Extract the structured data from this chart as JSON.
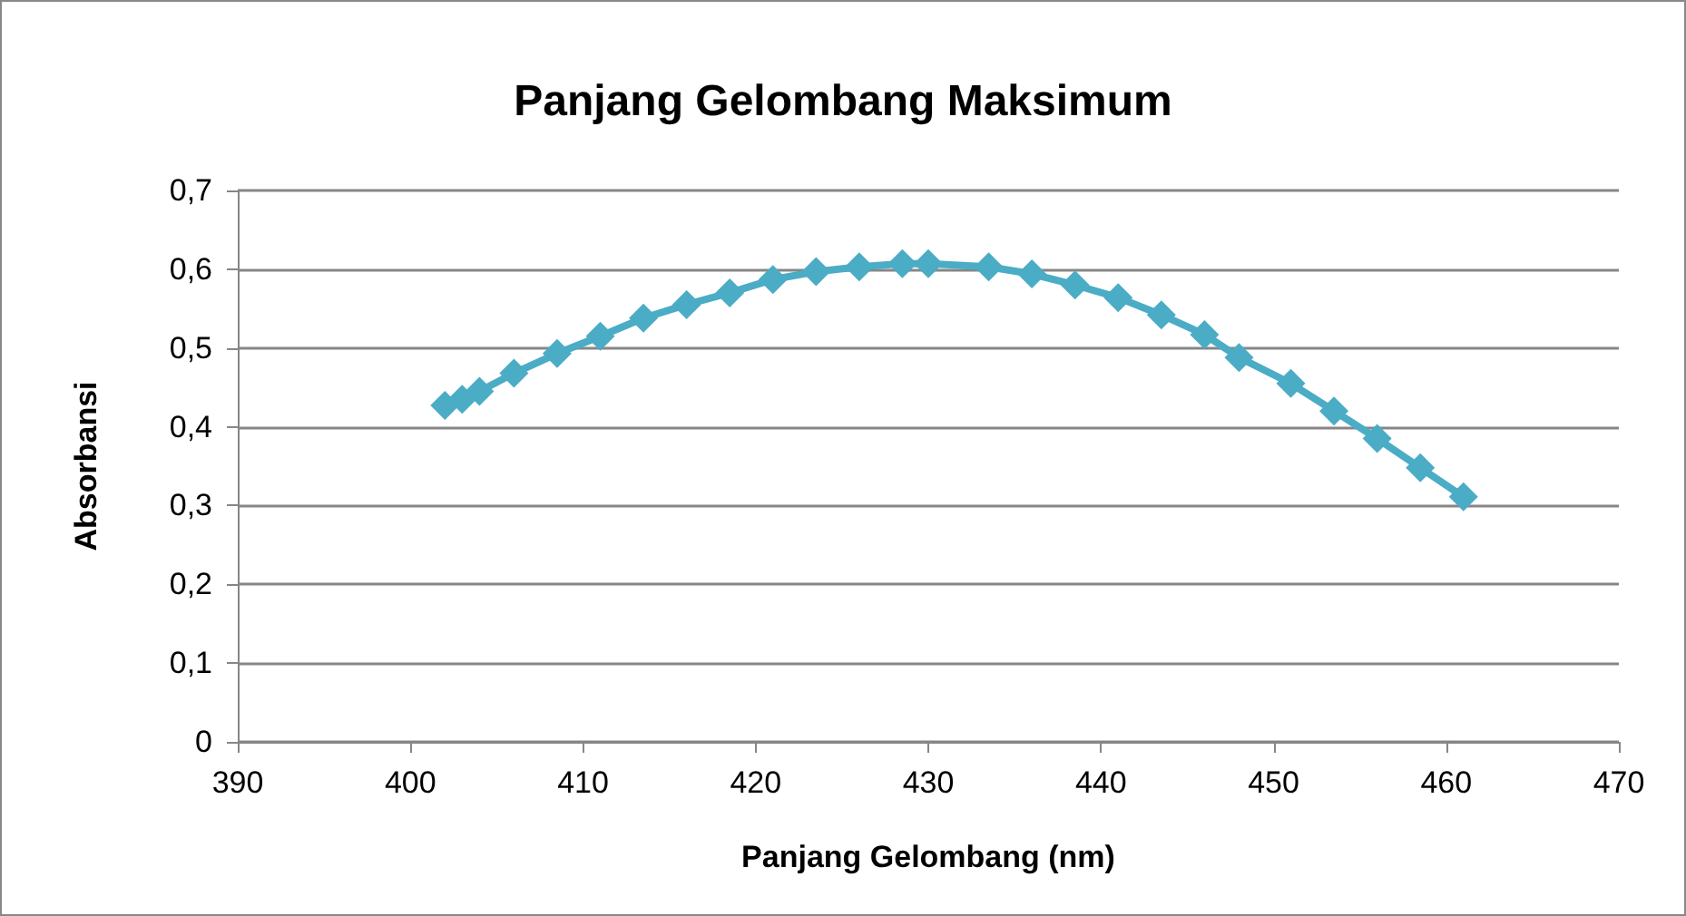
{
  "chart_data": {
    "type": "line",
    "title": "Panjang Gelombang Maksimum",
    "xlabel": "Panjang Gelombang (nm)",
    "ylabel": "Absorbansi",
    "series": [
      {
        "color": "#4bacc6",
        "x": [
          402,
          403,
          404,
          406,
          408.5,
          411,
          413.5,
          416,
          418.5,
          421,
          423.5,
          426,
          428.5,
          430,
          433.5,
          436,
          438.5,
          441,
          443.5,
          446,
          448,
          451,
          453.5,
          456,
          458.5,
          461
        ],
        "values": [
          0.427,
          0.435,
          0.445,
          0.468,
          0.493,
          0.515,
          0.538,
          0.555,
          0.57,
          0.587,
          0.597,
          0.603,
          0.607,
          0.607,
          0.603,
          0.594,
          0.58,
          0.564,
          0.542,
          0.517,
          0.488,
          0.455,
          0.42,
          0.385,
          0.348,
          0.311
        ]
      }
    ],
    "xlim": [
      390,
      470
    ],
    "xticks": [
      390,
      400,
      410,
      420,
      430,
      440,
      450,
      460,
      470
    ],
    "ylim": [
      0,
      0.7
    ],
    "yticks": [
      {
        "value": 0,
        "label": "0"
      },
      {
        "value": 0.1,
        "label": "0,1"
      },
      {
        "value": 0.2,
        "label": "0,2"
      },
      {
        "value": 0.3,
        "label": "0,3"
      },
      {
        "value": 0.4,
        "label": "0,4"
      },
      {
        "value": 0.5,
        "label": "0,5"
      },
      {
        "value": 0.6,
        "label": "0,6"
      },
      {
        "value": 0.7,
        "label": "0,7"
      }
    ],
    "grid": "y",
    "marker": "diamond",
    "line_style": "solid"
  }
}
